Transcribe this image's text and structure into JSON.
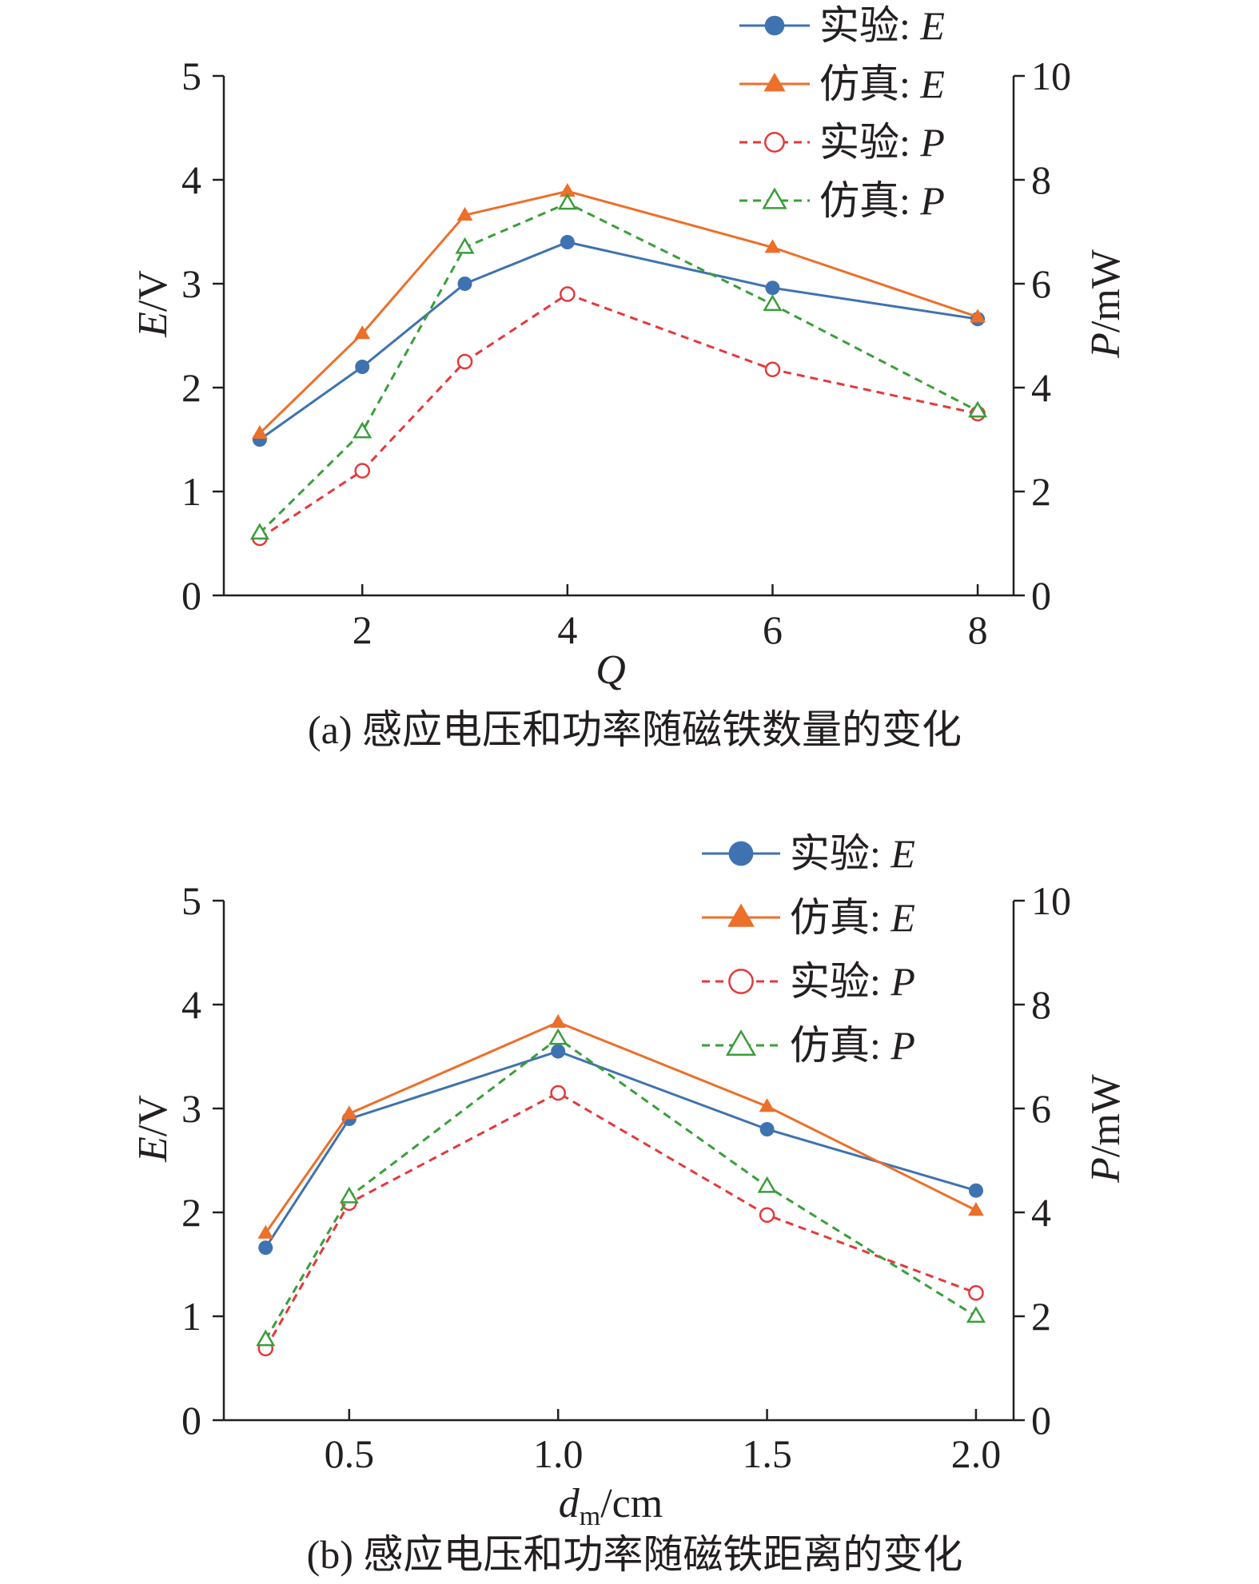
{
  "chart_data": [
    {
      "type": "line",
      "caption": "(a) 感应电压和功率随磁铁数量的变化",
      "xlabel": "Q",
      "ylabel_var": "E",
      "ylabel_unit": "/V",
      "y2label_var": "P",
      "y2label_unit": "/mW",
      "xlim": [
        0.65,
        8.35
      ],
      "ylim": [
        0,
        5
      ],
      "y2lim": [
        0,
        10
      ],
      "x_ticks": [
        2,
        4,
        6,
        8
      ],
      "x_tick_labels": [
        "2",
        "4",
        "6",
        "8"
      ],
      "y_ticks": [
        0,
        1,
        2,
        3,
        4,
        5
      ],
      "y_tick_labels": [
        "0",
        "1",
        "2",
        "3",
        "4",
        "5"
      ],
      "y2_ticks": [
        0,
        2,
        4,
        6,
        8,
        10
      ],
      "y2_tick_labels": [
        "0",
        "2",
        "4",
        "6",
        "8",
        "10"
      ],
      "legend_position": "top-right",
      "x": [
        1,
        2,
        3,
        4,
        6,
        8
      ],
      "series": [
        {
          "name_prefix": "实验",
          "name_var": "E",
          "axis": "left",
          "color": "#3f72b0",
          "style": "solid",
          "marker": "circle-filled",
          "values": [
            1.5,
            2.2,
            3.0,
            3.4,
            2.96,
            2.66
          ]
        },
        {
          "name_prefix": "仿真",
          "name_var": "E",
          "axis": "left",
          "color": "#ec6f2a",
          "style": "solid",
          "marker": "triangle-filled",
          "values": [
            1.56,
            2.52,
            3.66,
            3.89,
            3.35,
            2.68
          ]
        },
        {
          "name_prefix": "实验",
          "name_var": "P",
          "axis": "right",
          "color": "#e4393c",
          "style": "dashed",
          "marker": "circle-open",
          "values": [
            1.1,
            2.4,
            4.5,
            5.8,
            4.35,
            3.5
          ]
        },
        {
          "name_prefix": "仿真",
          "name_var": "P",
          "axis": "right",
          "color": "#3a9e3a",
          "style": "dashed",
          "marker": "triangle-open",
          "values": [
            1.2,
            3.15,
            6.7,
            7.55,
            5.6,
            3.55
          ]
        }
      ]
    },
    {
      "type": "line",
      "caption": "(b) 感应电压和功率随磁铁距离的变化",
      "xlabel": "d",
      "xlabel_sub": "m",
      "xlabel_unit": "/cm",
      "ylabel_var": "E",
      "ylabel_unit": "/V",
      "y2label_var": "P",
      "y2label_unit": "/mW",
      "xlim": [
        0.2,
        2.09
      ],
      "ylim": [
        0,
        5
      ],
      "y2lim": [
        0,
        10
      ],
      "x_ticks": [
        0.5,
        1.0,
        1.5,
        2.0
      ],
      "x_tick_labels": [
        "0.5",
        "1.0",
        "1.5",
        "2.0"
      ],
      "y_ticks": [
        0,
        1,
        2,
        3,
        4,
        5
      ],
      "y_tick_labels": [
        "0",
        "1",
        "2",
        "3",
        "4",
        "5"
      ],
      "y2_ticks": [
        0,
        2,
        4,
        6,
        8,
        10
      ],
      "y2_tick_labels": [
        "0",
        "2",
        "4",
        "6",
        "8",
        "10"
      ],
      "legend_position": "top-right",
      "x": [
        0.3,
        0.5,
        1.0,
        1.5,
        2.0
      ],
      "series": [
        {
          "name_prefix": "实验",
          "name_var": "E",
          "axis": "left",
          "color": "#3f72b0",
          "style": "solid",
          "marker": "circle-filled",
          "values": [
            1.66,
            2.9,
            3.55,
            2.8,
            2.21
          ]
        },
        {
          "name_prefix": "仿真",
          "name_var": "E",
          "axis": "left",
          "color": "#ec6f2a",
          "style": "solid",
          "marker": "triangle-filled",
          "values": [
            1.8,
            2.95,
            3.83,
            3.02,
            2.02
          ]
        },
        {
          "name_prefix": "实验",
          "name_var": "P",
          "axis": "right",
          "color": "#e4393c",
          "style": "dashed",
          "marker": "circle-open",
          "values": [
            1.38,
            4.18,
            6.3,
            3.95,
            2.45
          ]
        },
        {
          "name_prefix": "仿真",
          "name_var": "P",
          "axis": "right",
          "color": "#3a9e3a",
          "style": "dashed",
          "marker": "triangle-open",
          "values": [
            1.55,
            4.3,
            7.35,
            4.5,
            2.0
          ]
        }
      ]
    }
  ]
}
